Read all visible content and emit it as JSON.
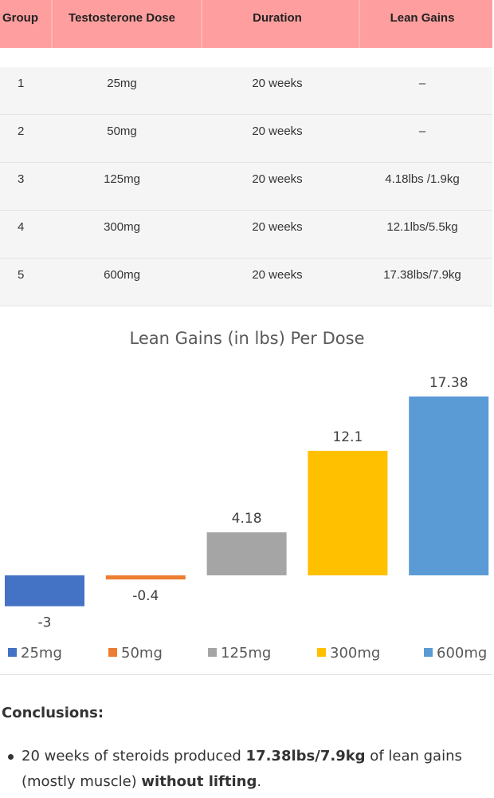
{
  "table": {
    "headers": [
      "Group",
      "Testosterone Dose",
      "Duration",
      "Lean Gains"
    ],
    "rows": [
      {
        "group": "1",
        "dose": "25mg",
        "duration": "20 weeks",
        "gains": "–"
      },
      {
        "group": "2",
        "dose": "50mg",
        "duration": "20 weeks",
        "gains": "–"
      },
      {
        "group": "3",
        "dose": "125mg",
        "duration": "20 weeks",
        "gains": "4.18lbs /1.9kg"
      },
      {
        "group": "4",
        "dose": "300mg",
        "duration": "20 weeks",
        "gains": "12.1lbs/5.5kg"
      },
      {
        "group": "5",
        "dose": "600mg",
        "duration": "20 weeks",
        "gains": "17.38lbs/7.9kg"
      }
    ],
    "colors": {
      "header_bg": "#ff9e9e",
      "body_bg": "#f5f5f5"
    }
  },
  "chart_data": {
    "type": "bar",
    "title": "Lean Gains (in lbs) Per Dose",
    "xlabel": "",
    "ylabel": "",
    "ylim": [
      -3.5,
      20
    ],
    "grid": false,
    "legend_position": "bottom",
    "categories": [
      "25mg",
      "50mg",
      "125mg",
      "300mg",
      "600mg"
    ],
    "values": [
      -3,
      -0.4,
      4.18,
      12.1,
      17.38
    ],
    "data_labels": [
      "-3",
      "-0.4",
      "4.18",
      "12.1",
      "17.38"
    ],
    "colors": [
      "#4472c4",
      "#ed7d31",
      "#a5a5a5",
      "#ffc000",
      "#5b9bd5"
    ]
  },
  "conclusions": {
    "heading": "Conclusions:",
    "item": {
      "part1": "20 weeks of steroids produced ",
      "bold1": "17.38lbs/7.9kg",
      "part2": " of lean gains (mostly muscle) ",
      "bold2": "without lifting",
      "part3": "."
    }
  }
}
